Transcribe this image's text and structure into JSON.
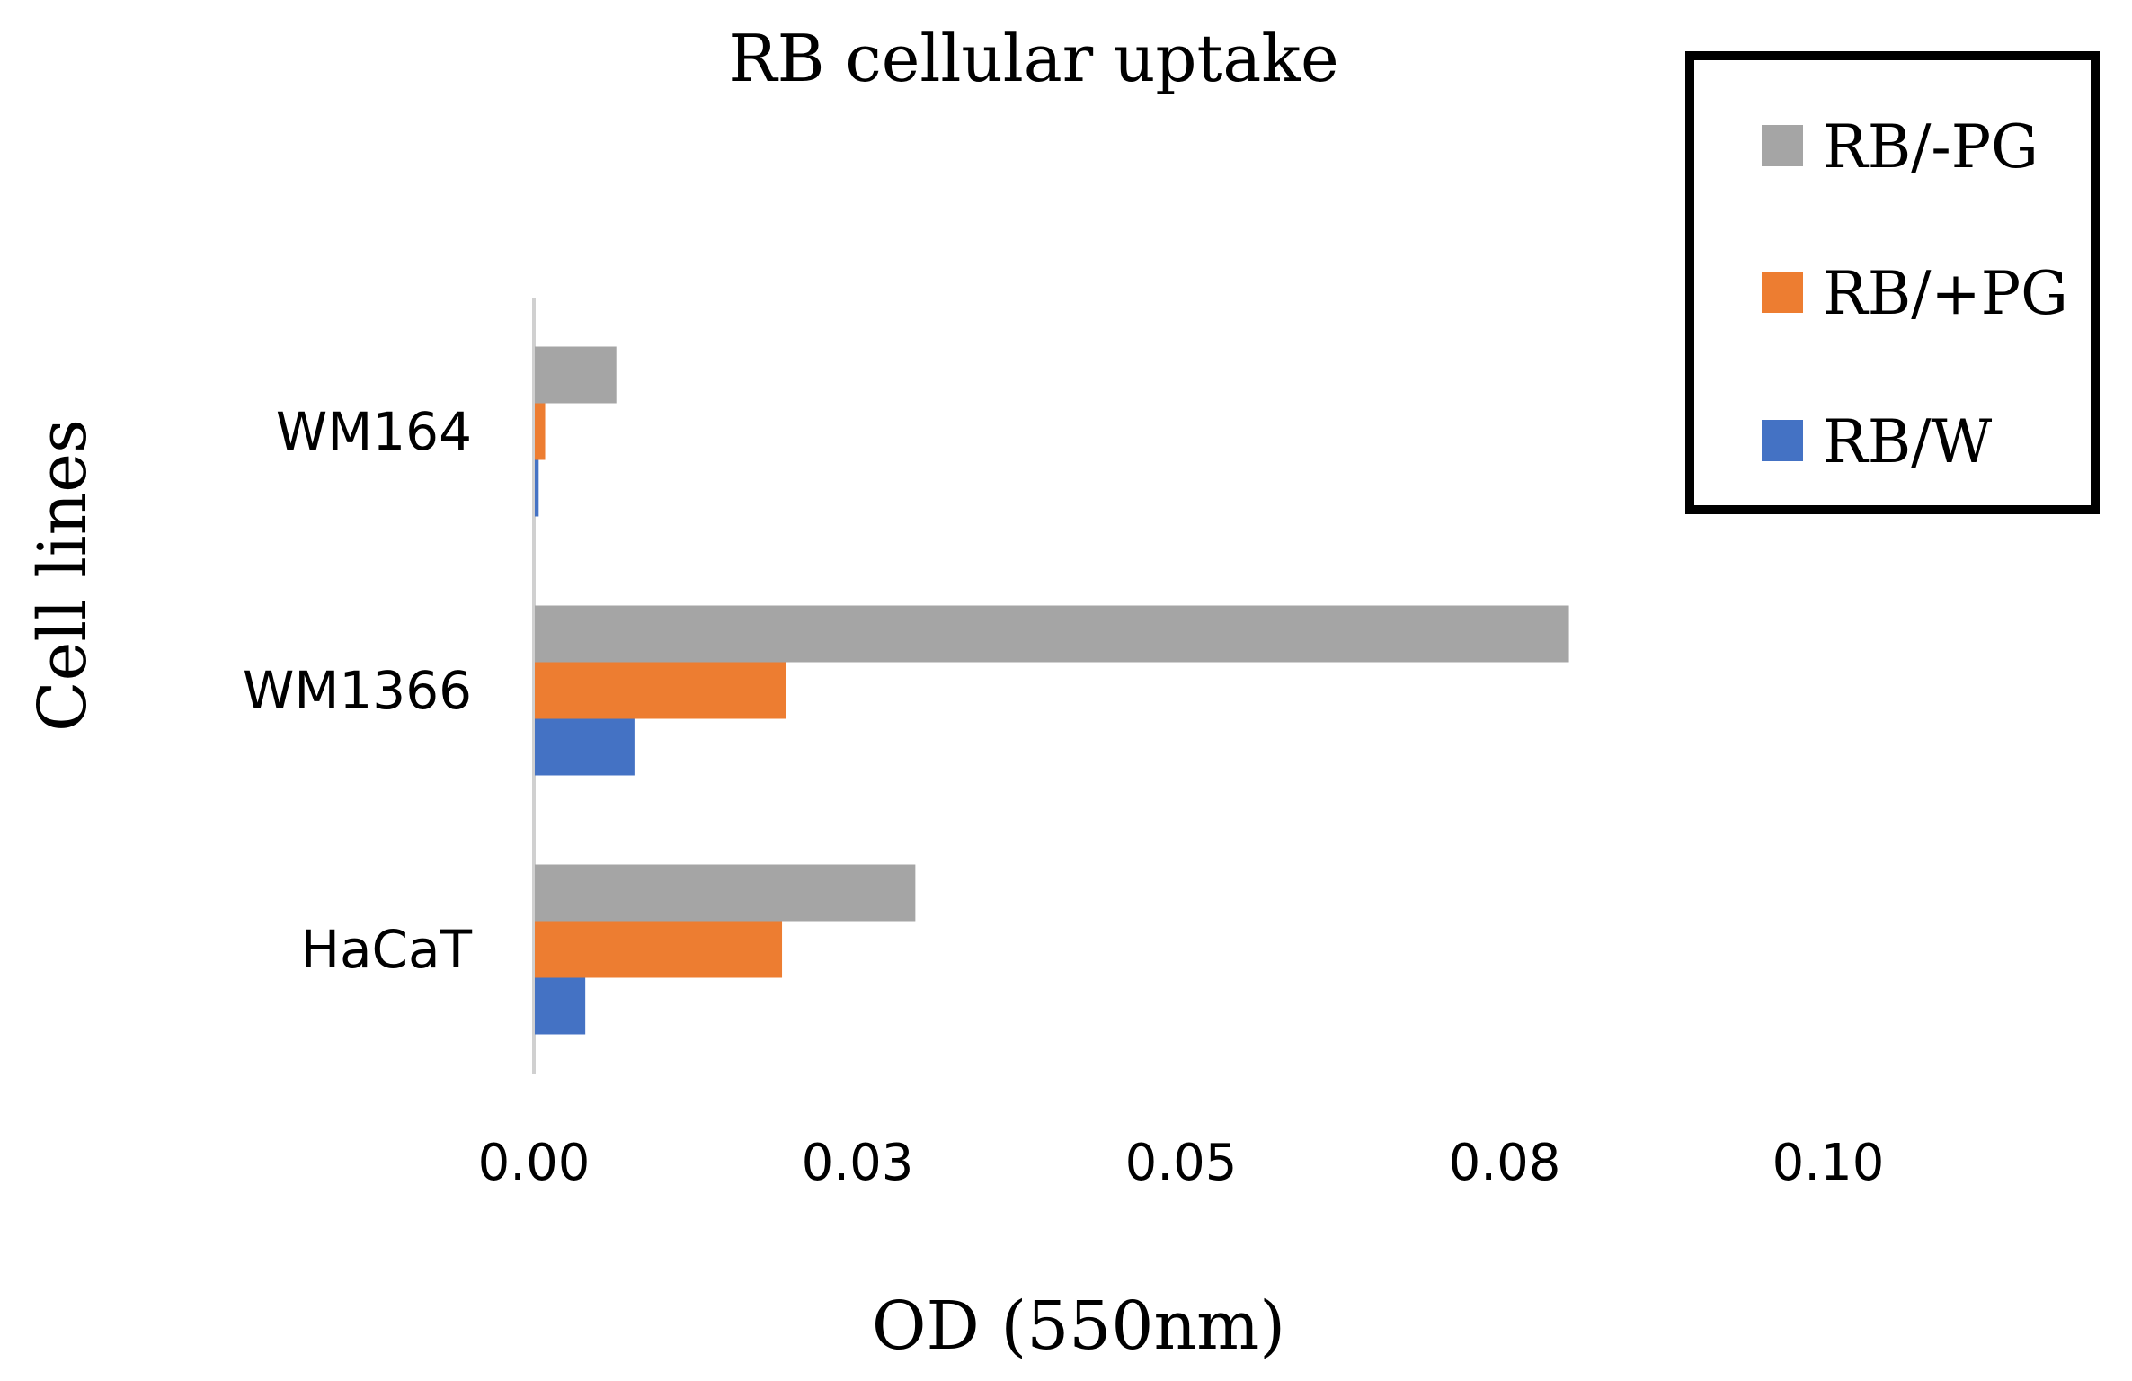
{
  "chart_data": {
    "type": "bar",
    "orientation": "horizontal",
    "title": "RB cellular uptake",
    "xlabel": "OD (550nm)",
    "ylabel": "Cell lines",
    "categories": [
      "WM164",
      "WM1366",
      "HaCaT"
    ],
    "series": [
      {
        "name": "RB/-PG",
        "color": "#A5A5A5",
        "values": [
          0.0063,
          0.0799,
          0.0294
        ]
      },
      {
        "name": "RB/+PG",
        "color": "#ED7D31",
        "values": [
          0.0008,
          0.0194,
          0.0191
        ]
      },
      {
        "name": "RB/W",
        "color": "#4472C4",
        "values": [
          0.0003,
          0.0077,
          0.0039
        ]
      }
    ],
    "xlim": [
      0,
      0.1
    ],
    "xticks": [
      0,
      0.025,
      0.05,
      0.075,
      0.1
    ],
    "xtick_labels": [
      "0.00",
      "0.03",
      "0.05",
      "0.08",
      "0.10"
    ],
    "grid": false,
    "legend_position": "top-right"
  }
}
